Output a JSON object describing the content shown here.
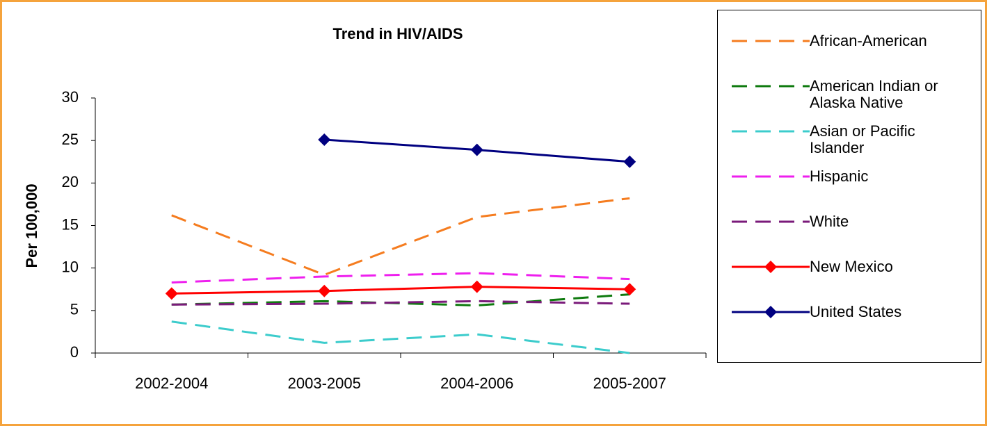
{
  "chart_data": {
    "type": "line",
    "title": "Trend in HIV/AIDS",
    "y_label": "Per 100,000",
    "categories": [
      "2002-2004",
      "2003-2005",
      "2004-2006",
      "2005-2007"
    ],
    "ylim": [
      0,
      30
    ],
    "yticks": [
      0,
      5,
      10,
      15,
      20,
      25,
      30
    ],
    "grid": false,
    "legend": "right",
    "series": [
      {
        "name": "African-American",
        "color": "#f57c1f",
        "dashed": true,
        "values": [
          16.2,
          9.2,
          16,
          18.2
        ]
      },
      {
        "name": "American Indian or Alaska Native",
        "color": "#0e7a0e",
        "dashed": true,
        "values": [
          5.7,
          6.1,
          5.6,
          6.9
        ]
      },
      {
        "name": "Asian or Pacific Islander",
        "color": "#3ccccc",
        "dashed": true,
        "values": [
          3.7,
          1.2,
          2.2,
          0
        ]
      },
      {
        "name": "Hispanic",
        "color": "#ee1fee",
        "dashed": true,
        "values": [
          8.3,
          9,
          9.4,
          8.7
        ]
      },
      {
        "name": "White",
        "color": "#7a1a7a",
        "dashed": true,
        "values": [
          5.7,
          5.8,
          6.1,
          5.8
        ]
      },
      {
        "name": "New Mexico",
        "color": "#ff0000",
        "dashed": false,
        "marker": "diamond",
        "values": [
          7,
          7.3,
          7.8,
          7.5
        ]
      },
      {
        "name": "United States",
        "color": "#000080",
        "dashed": false,
        "marker": "diamond",
        "values": [
          null,
          25.1,
          23.9,
          22.5
        ]
      }
    ]
  }
}
